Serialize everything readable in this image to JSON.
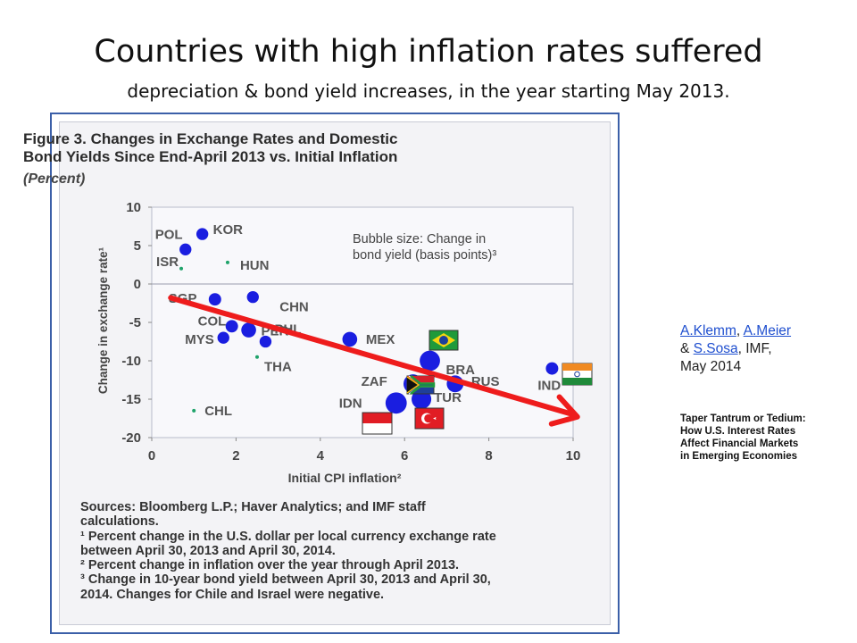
{
  "slide": {
    "title": "Countries with high inflation rates suffered",
    "subtitle": "depreciation & bond yield increases, in the year starting May 2013."
  },
  "figure": {
    "title_line1": "Figure 3. Changes in Exchange Rates and Domestic",
    "title_line2": "Bond Yields Since End-April 2013 vs. Initial Inflation",
    "subtitle": "(Percent)",
    "bubble_note_line1": "Bubble size: Change in",
    "bubble_note_line2": "bond yield (basis points)³",
    "notes": [
      "Sources: Bloomberg L.P.; Haver Analytics; and IMF staff",
      "calculations.",
      "¹ Percent change in the U.S. dollar per local currency exchange rate",
      "between April 30, 2013 and April 30, 2014.",
      "² Percent change in inflation over the year through April 2013.",
      "³ Change in 10-year  bond yield between April 30, 2013 and April 30,",
      "2014. Changes for Chile and Israel were negative."
    ]
  },
  "chart_data": {
    "type": "scatter",
    "xlabel": "Initial CPI inflation²",
    "ylabel": "Change in exchange rate¹",
    "xlim": [
      0,
      10
    ],
    "ylim": [
      -20,
      10
    ],
    "xticks": [
      0,
      2,
      4,
      6,
      8,
      10
    ],
    "yticks": [
      10,
      5,
      0,
      -5,
      -10,
      -15,
      -20
    ],
    "grid": false,
    "zero_line": true,
    "point_color": "#1a1ee0",
    "small_point_color": "#1fa36a",
    "trend_arrow_color": "#ee1c1c",
    "points": [
      {
        "label": "POL",
        "x": 0.8,
        "y": 4.5,
        "size": 55,
        "label_dx": 0,
        "label_dy": 0
      },
      {
        "label": "KOR",
        "x": 1.2,
        "y": 6.5,
        "size": 55
      },
      {
        "label": "ISR",
        "x": 0.7,
        "y": 2.0,
        "size": 5
      },
      {
        "label": "HUN",
        "x": 1.8,
        "y": 2.8,
        "size": 5
      },
      {
        "label": "SGP",
        "x": 1.5,
        "y": -2.0,
        "size": 60
      },
      {
        "label": "CHN",
        "x": 2.4,
        "y": -1.7,
        "size": 55
      },
      {
        "label": "COL",
        "x": 1.9,
        "y": -5.5,
        "size": 60
      },
      {
        "label": "PER",
        "x": 2.3,
        "y": -6.0,
        "size": 85
      },
      {
        "label": "MYS",
        "x": 1.7,
        "y": -7.0,
        "size": 55
      },
      {
        "label": "PHL",
        "x": 2.7,
        "y": -7.5,
        "size": 55
      },
      {
        "label": "THA",
        "x": 2.5,
        "y": -9.5,
        "size": 5
      },
      {
        "label": "MEX",
        "x": 4.7,
        "y": -7.2,
        "size": 85
      },
      {
        "label": "BRA",
        "x": 6.6,
        "y": -10.0,
        "size": 160
      },
      {
        "label": "ZAF",
        "x": 6.2,
        "y": -13.0,
        "size": 140
      },
      {
        "label": "RUS",
        "x": 7.2,
        "y": -13.0,
        "size": 110
      },
      {
        "label": "IND",
        "x": 9.5,
        "y": -11.0,
        "size": 60
      },
      {
        "label": "TUR",
        "x": 6.4,
        "y": -15.0,
        "size": 150
      },
      {
        "label": "IDN",
        "x": 5.8,
        "y": -15.5,
        "size": 175
      },
      {
        "label": "CHL",
        "x": 1.0,
        "y": -16.5,
        "size": 5
      }
    ]
  },
  "flags": [
    {
      "name": "brazil-flag",
      "country": "BRA"
    },
    {
      "name": "south-africa-flag",
      "country": "ZAF"
    },
    {
      "name": "india-flag",
      "country": "IND"
    },
    {
      "name": "turkey-flag",
      "country": "TUR"
    },
    {
      "name": "indonesia-flag",
      "country": "IDN"
    }
  ],
  "credits": {
    "author1": "A.Klemm",
    "sep1": ", ",
    "author2": "A.Meier",
    "amp": "& ",
    "author3": " S.Sosa",
    "org": ", IMF,",
    "date": "May 2014"
  },
  "paper": {
    "line1": "Taper Tantrum or Tedium:",
    "line2": "How U.S. Interest Rates",
    "line3": "Affect Financial Markets",
    "line4": "in Emerging Economies"
  }
}
